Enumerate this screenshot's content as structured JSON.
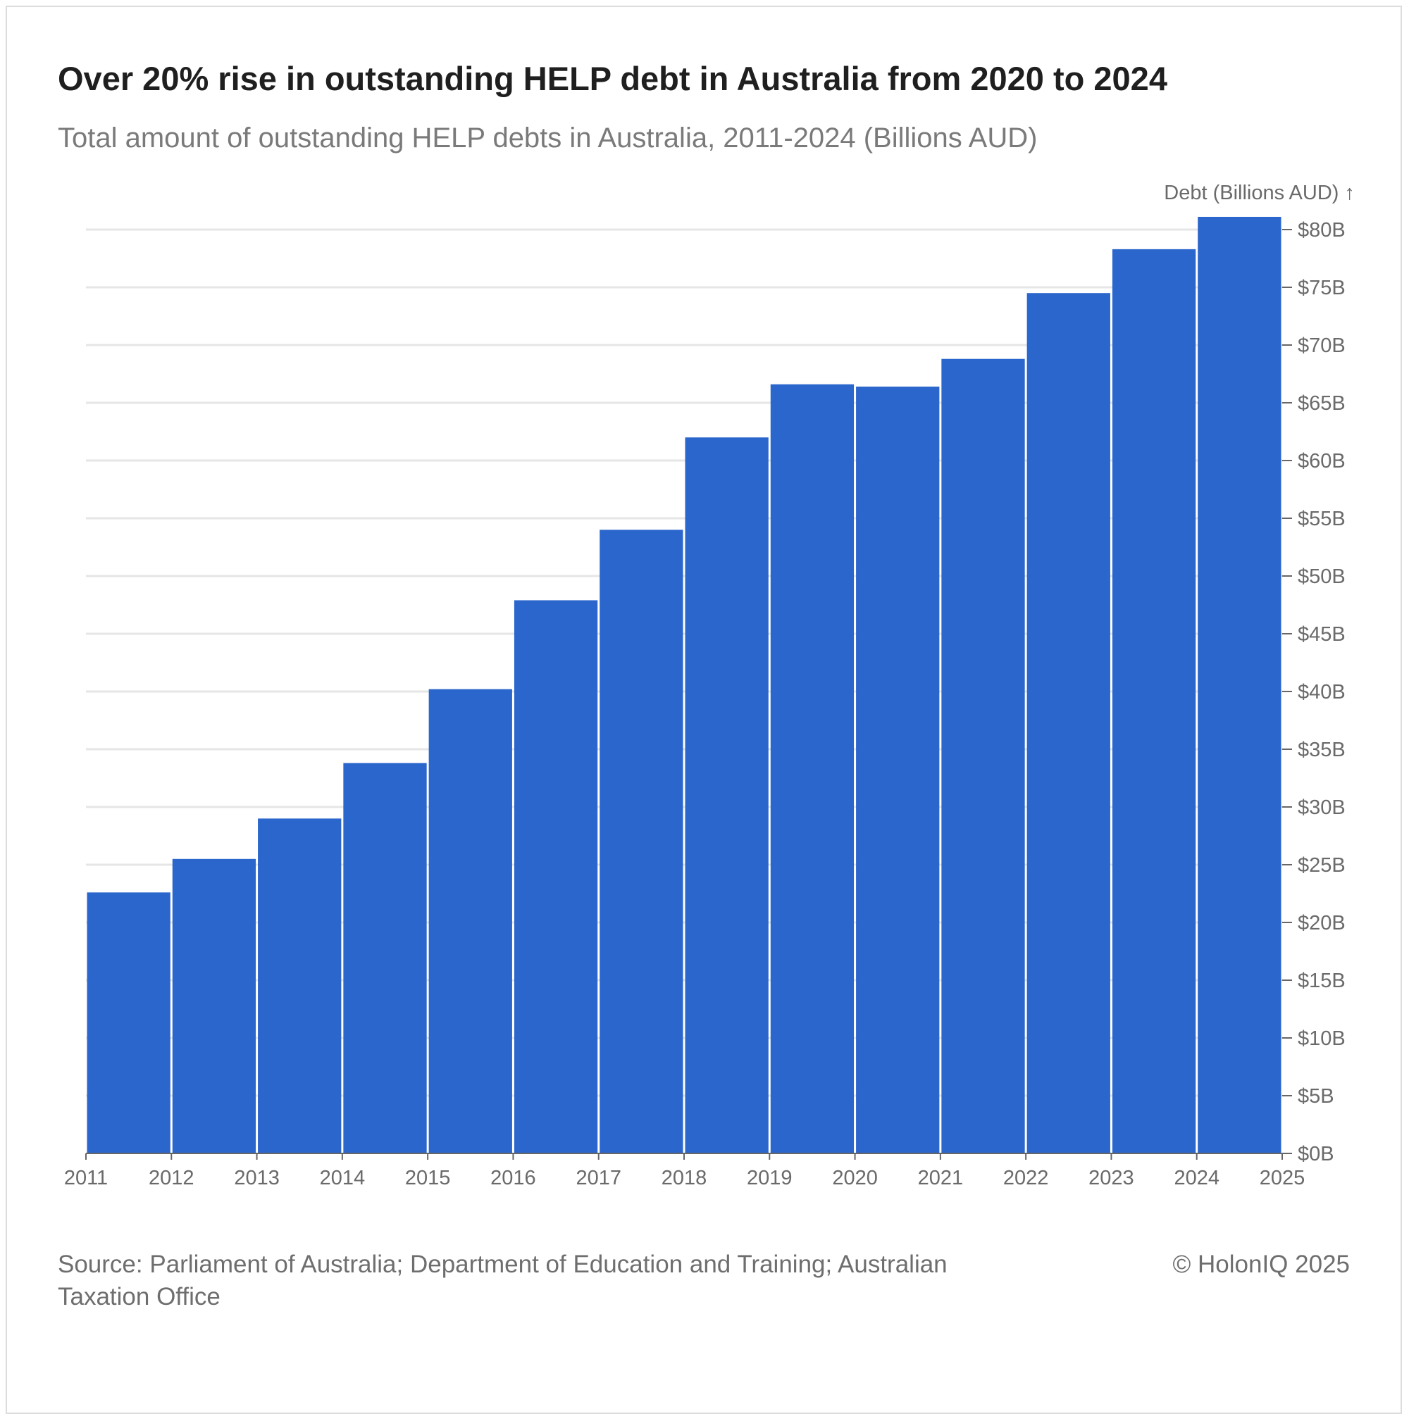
{
  "header": {
    "title": "Over 20% rise in outstanding HELP debt in Australia from 2020 to 2024",
    "subtitle": "Total amount of outstanding HELP debts in Australia, 2011-2024 (Billions AUD)"
  },
  "footer": {
    "source": "Source: Parliament of Australia; Department of Education and Training; Australian Taxation Office",
    "copyright": "© HolonIQ 2025"
  },
  "colors": {
    "bar": "#2b66cc",
    "grid": "#e6e6e6",
    "axis": "#666666",
    "tick_text": "#6a6a6a"
  },
  "chart_data": {
    "type": "bar",
    "title": "Over 20% rise in outstanding HELP debt in Australia from 2020 to 2024",
    "subtitle": "Total amount of outstanding HELP debts in Australia, 2011-2024 (Billions AUD)",
    "ylabel": "Debt (Billions AUD) ↑",
    "y_axis_position": "right",
    "grid": true,
    "ylim": [
      0,
      80
    ],
    "xlim": [
      2011,
      2025
    ],
    "x_ticks": [
      "2011",
      "2012",
      "2013",
      "2014",
      "2015",
      "2016",
      "2017",
      "2018",
      "2019",
      "2020",
      "2021",
      "2022",
      "2023",
      "2024",
      "2025"
    ],
    "y_ticks": [
      0,
      5,
      10,
      15,
      20,
      25,
      30,
      35,
      40,
      45,
      50,
      55,
      60,
      65,
      70,
      75,
      80
    ],
    "y_tick_labels": [
      "$0B",
      "$5B",
      "$10B",
      "$15B",
      "$20B",
      "$25B",
      "$30B",
      "$35B",
      "$40B",
      "$45B",
      "$50B",
      "$55B",
      "$60B",
      "$65B",
      "$70B",
      "$75B",
      "$80B"
    ],
    "bins": [
      {
        "start": 2011,
        "end": 2012,
        "value": 22.6
      },
      {
        "start": 2012,
        "end": 2013,
        "value": 25.5
      },
      {
        "start": 2013,
        "end": 2014,
        "value": 29.0
      },
      {
        "start": 2014,
        "end": 2015,
        "value": 33.8
      },
      {
        "start": 2015,
        "end": 2016,
        "value": 40.2
      },
      {
        "start": 2016,
        "end": 2017,
        "value": 47.9
      },
      {
        "start": 2017,
        "end": 2018,
        "value": 54.0
      },
      {
        "start": 2018,
        "end": 2019,
        "value": 62.0
      },
      {
        "start": 2019,
        "end": 2020,
        "value": 66.6
      },
      {
        "start": 2020,
        "end": 2021,
        "value": 66.4
      },
      {
        "start": 2021,
        "end": 2022,
        "value": 68.8
      },
      {
        "start": 2022,
        "end": 2023,
        "value": 74.5
      },
      {
        "start": 2023,
        "end": 2024,
        "value": 78.3
      },
      {
        "start": 2024,
        "end": 2025,
        "value": 81.1
      }
    ]
  }
}
